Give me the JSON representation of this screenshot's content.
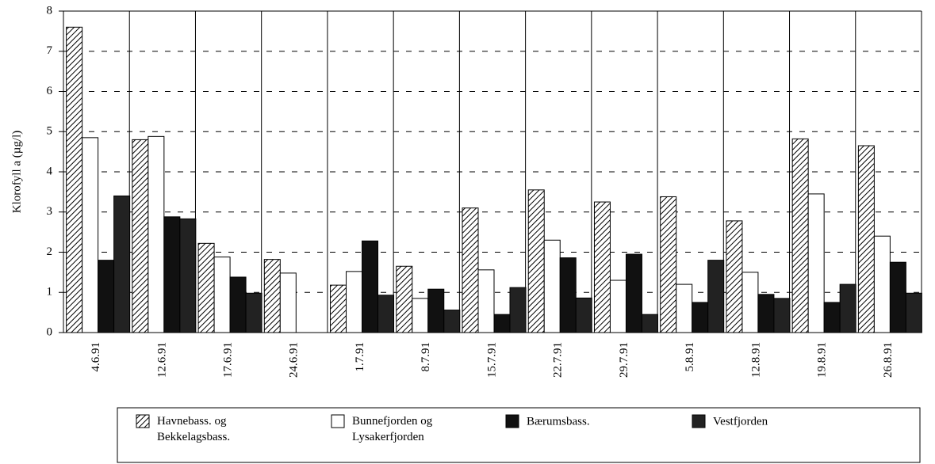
{
  "chart_data": {
    "type": "bar",
    "y_label": "Klorofyll a (µg/l)",
    "categories": [
      "4.6.91",
      "12.6.91",
      "17.6.91",
      "24.6.91",
      "1.7.91",
      "8.7.91",
      "15.7.91",
      "22.7.91",
      "29.7.91",
      "5.8.91",
      "12.8.91",
      "19.8.91",
      "26.8.91"
    ],
    "series": [
      {
        "name": "Havnebass. og\nBekkelagsbass.",
        "color": "#ffffff",
        "pattern": "hatch",
        "values": [
          7.6,
          4.8,
          2.22,
          1.82,
          1.18,
          1.65,
          3.1,
          3.55,
          3.25,
          3.38,
          2.78,
          4.82,
          4.65
        ]
      },
      {
        "name": "Bunnefjorden og\nLysakerfjorden",
        "color": "#ffffff",
        "values": [
          4.85,
          4.88,
          1.88,
          1.48,
          1.52,
          0.85,
          1.56,
          2.3,
          1.3,
          1.2,
          1.5,
          3.45,
          2.4
        ]
      },
      {
        "name": "Bærumsbass.",
        "color": "#111111",
        "values": [
          1.8,
          2.88,
          1.38,
          null,
          2.28,
          1.08,
          0.45,
          1.86,
          1.95,
          0.75,
          0.95,
          0.75,
          1.75
        ]
      },
      {
        "name": "Vestfjorden",
        "color": "#222222",
        "values": [
          3.4,
          2.83,
          0.98,
          null,
          0.93,
          0.56,
          1.12,
          0.86,
          0.45,
          1.8,
          0.85,
          1.2,
          0.98
        ]
      }
    ],
    "ylim": [
      0,
      8
    ],
    "yticks": [
      0,
      1,
      2,
      3,
      4,
      5,
      6,
      7,
      8
    ],
    "grid": true
  }
}
